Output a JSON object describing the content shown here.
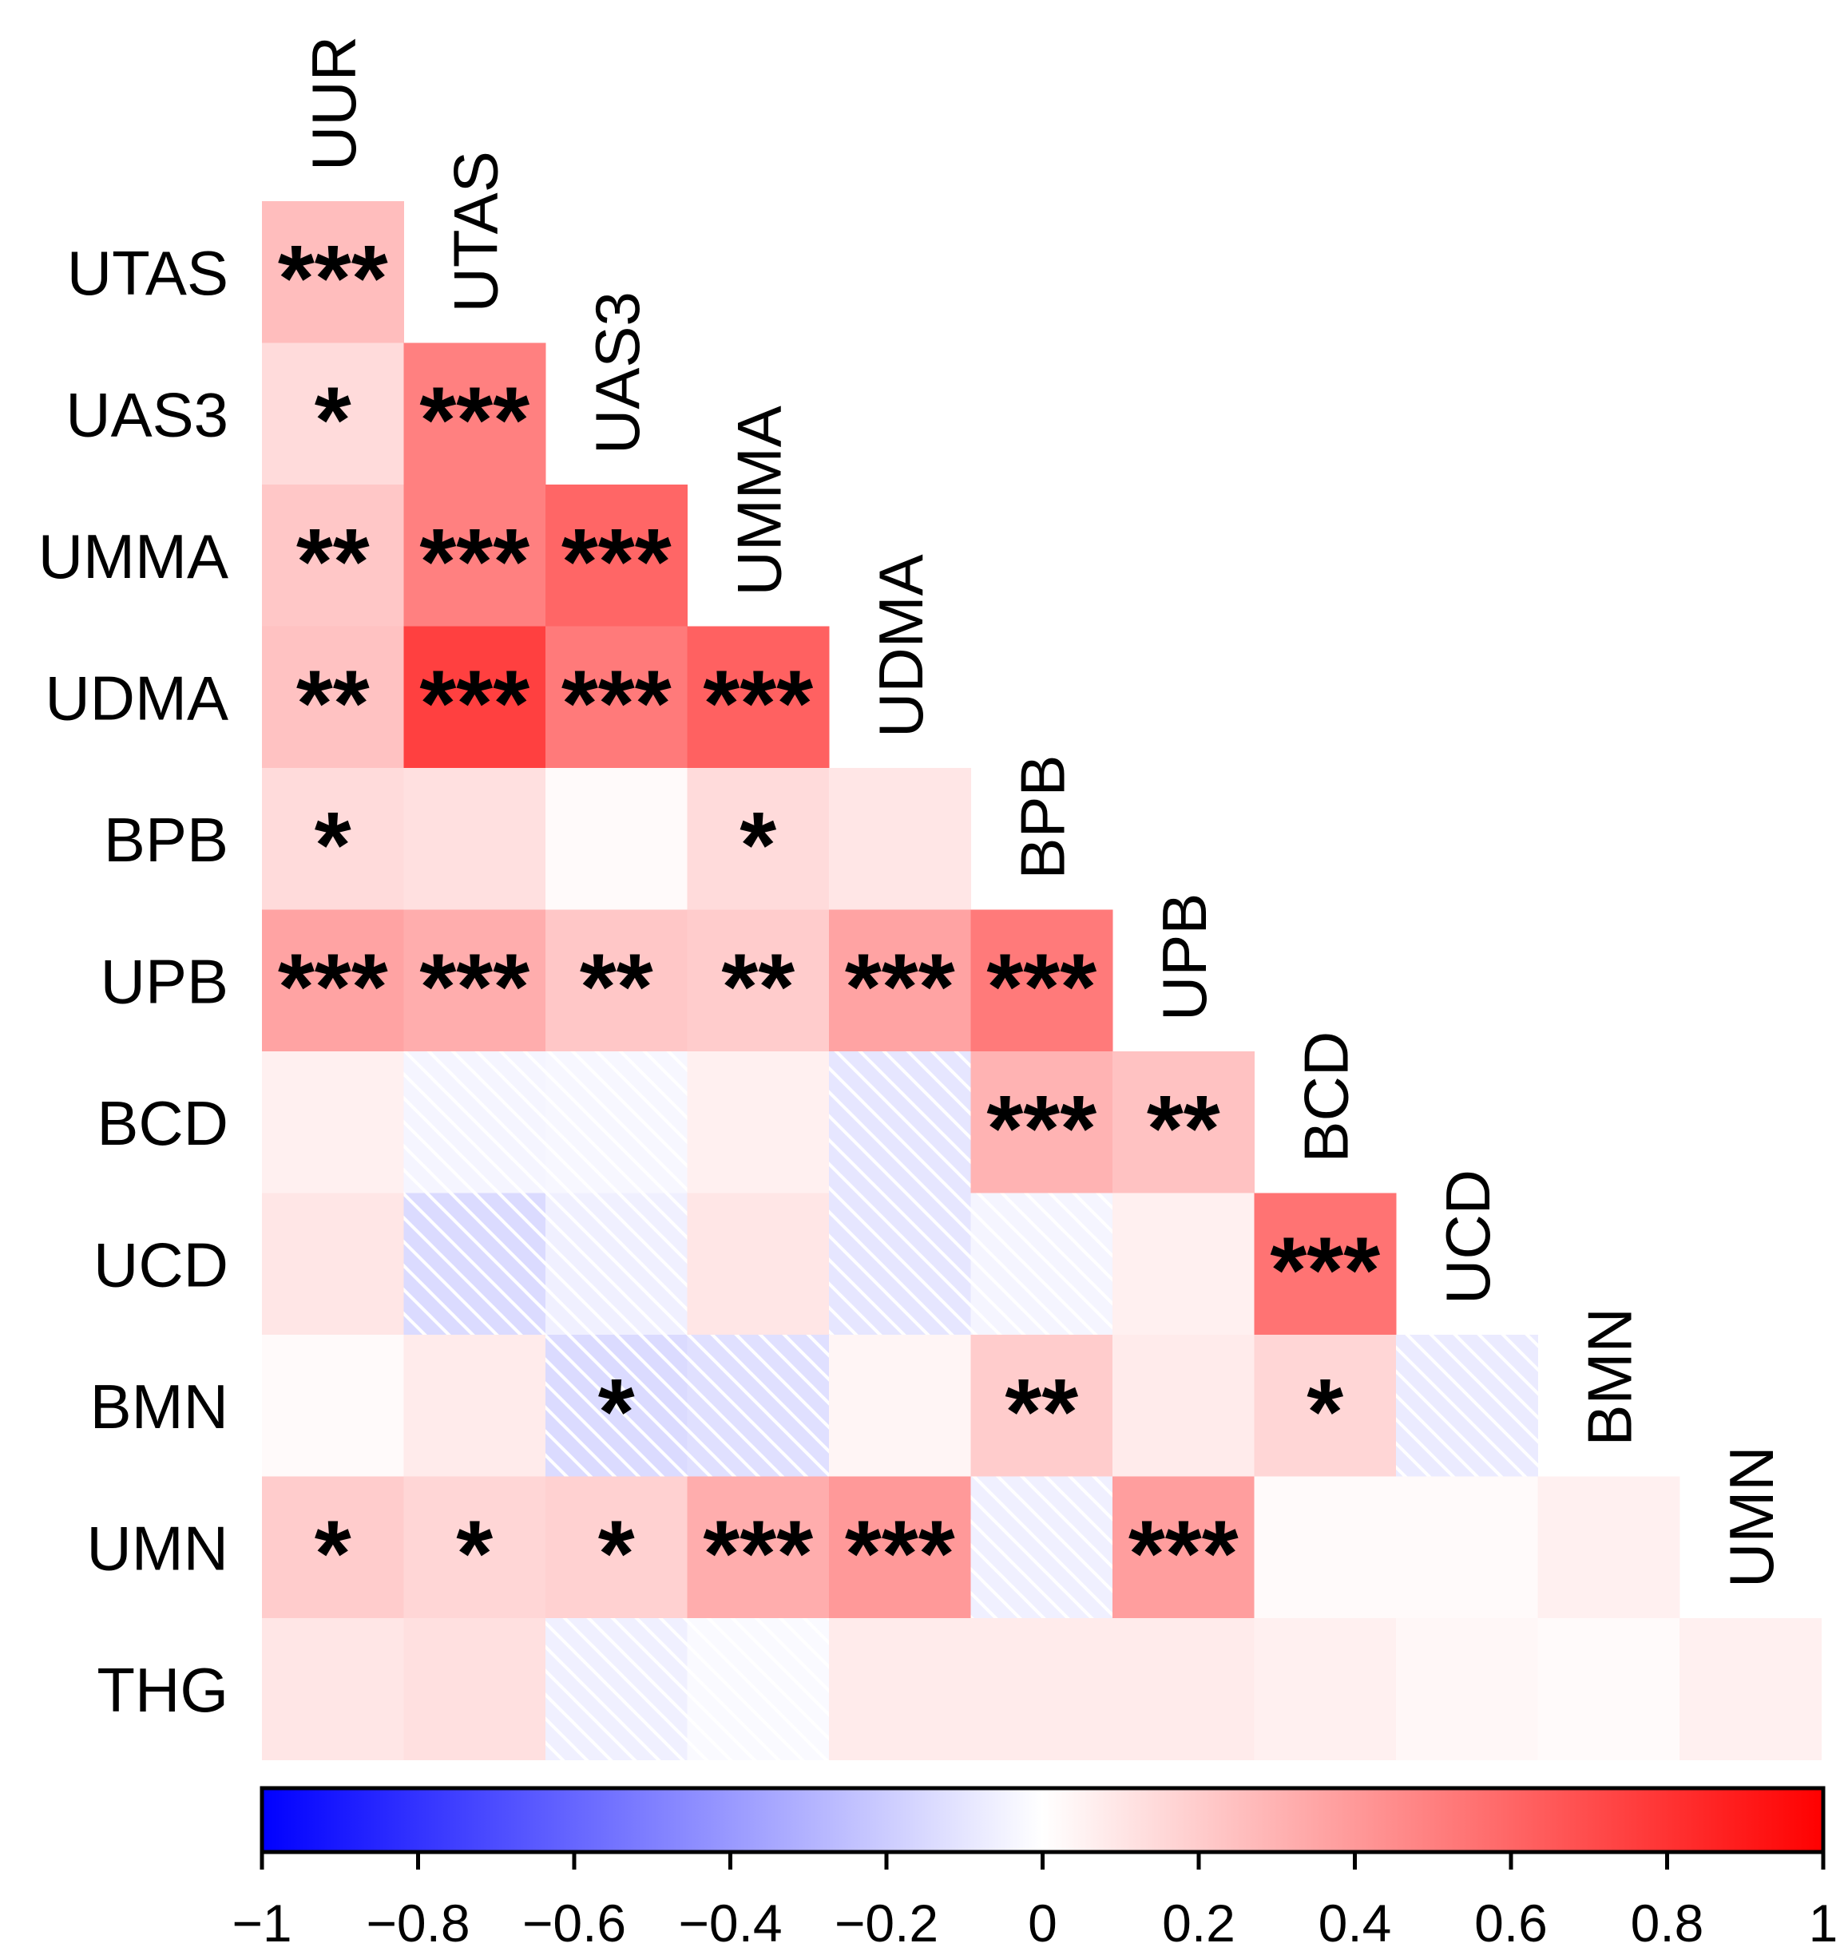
{
  "chart_data": {
    "type": "heatmap",
    "layout": "lower-triangular",
    "variables": [
      "UUR",
      "UTAS",
      "UAS3",
      "UMMA",
      "UDMA",
      "BPB",
      "UPB",
      "BCD",
      "UCD",
      "BMN",
      "UMN",
      "THG"
    ],
    "row_labels": [
      "UTAS",
      "UAS3",
      "UMMA",
      "UDMA",
      "BPB",
      "UPB",
      "BCD",
      "UCD",
      "BMN",
      "UMN",
      "THG"
    ],
    "col_labels": [
      "UUR",
      "UTAS",
      "UAS3",
      "UMMA",
      "UDMA",
      "BPB",
      "UPB",
      "BCD",
      "UCD",
      "BMN",
      "UMN"
    ],
    "values": [
      [
        0.26
      ],
      [
        0.14,
        0.5
      ],
      [
        0.22,
        0.5,
        0.6
      ],
      [
        0.24,
        0.75,
        0.52,
        0.62
      ],
      [
        0.14,
        0.12,
        0.02,
        0.14,
        0.1
      ],
      [
        0.36,
        0.32,
        0.22,
        0.2,
        0.36,
        0.52
      ],
      [
        0.06,
        -0.04,
        -0.03,
        0.06,
        -0.1,
        0.3,
        0.24
      ],
      [
        0.1,
        -0.14,
        -0.06,
        0.1,
        -0.1,
        -0.04,
        0.06,
        0.55
      ],
      [
        0.02,
        0.08,
        -0.14,
        -0.12,
        0.04,
        0.2,
        0.08,
        0.16,
        -0.08
      ],
      [
        0.2,
        0.16,
        0.18,
        0.32,
        0.4,
        -0.06,
        0.38,
        0.02,
        0.02,
        0.06
      ],
      [
        0.1,
        0.12,
        -0.06,
        -0.02,
        0.08,
        0.08,
        0.08,
        0.06,
        0.03,
        0.02,
        0.06
      ]
    ],
    "significance": [
      [
        "***"
      ],
      [
        "*",
        "***"
      ],
      [
        "**",
        "***",
        "***"
      ],
      [
        "**",
        "***",
        "***",
        "***"
      ],
      [
        "*",
        "",
        "",
        "*",
        ""
      ],
      [
        "***",
        "***",
        "**",
        "**",
        "***",
        "***"
      ],
      [
        "",
        "",
        "",
        "",
        "",
        "***",
        "**"
      ],
      [
        "",
        "",
        "",
        "",
        "",
        "",
        "",
        "***"
      ],
      [
        "",
        "",
        "*",
        "",
        "",
        "**",
        "",
        "*",
        ""
      ],
      [
        "*",
        "*",
        "*",
        "***",
        "***",
        "",
        "***",
        "",
        "",
        ""
      ],
      [
        "",
        "",
        "",
        "",
        "",
        "",
        "",
        "",
        "",
        "",
        ""
      ]
    ],
    "negative_hatching": true,
    "color_scale": {
      "min": -1,
      "max": 1,
      "colors": [
        "#0000ff",
        "#ffffff",
        "#ff0000"
      ],
      "ticks": [
        -1,
        -0.8,
        -0.6,
        -0.4,
        -0.2,
        0,
        0.2,
        0.4,
        0.6,
        0.8,
        1
      ],
      "tick_labels": [
        "−1",
        "−0.8",
        "−0.6",
        "−0.4",
        "−0.2",
        "0",
        "0.2",
        "0.4",
        "0.6",
        "0.8",
        "1"
      ]
    },
    "title": "",
    "legend_position": "bottom"
  }
}
